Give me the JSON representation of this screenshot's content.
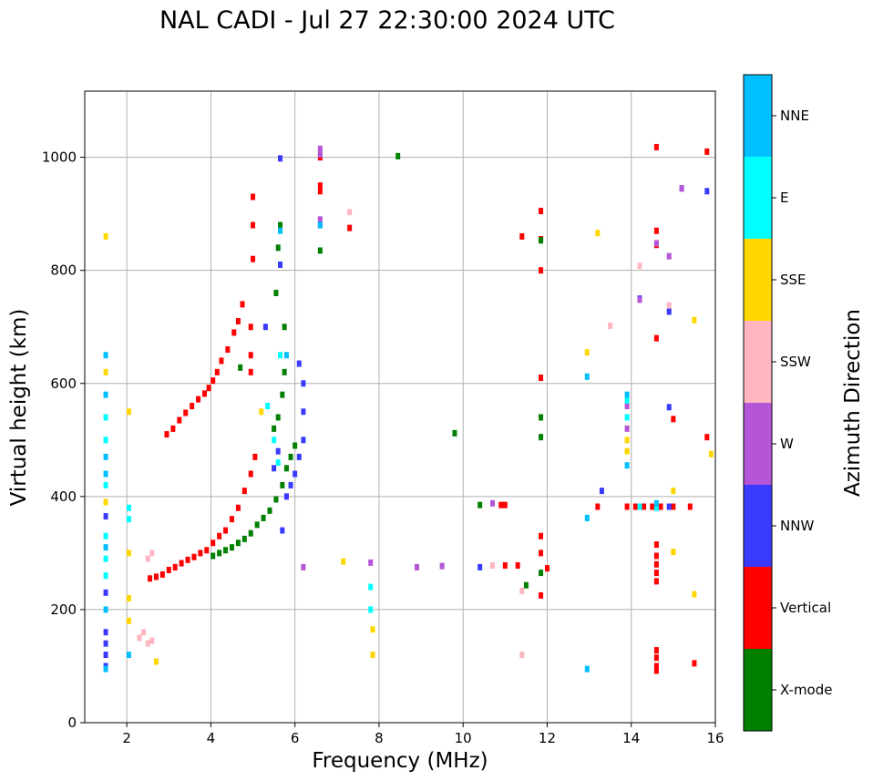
{
  "chart_data": {
    "type": "scatter",
    "title": "NAL CADI - Jul 27 22:30:00 2024 UTC",
    "xlabel": "Frequency (MHz)",
    "ylabel": "Virtual height (km)",
    "xlim": [
      1.0,
      16.0
    ],
    "ylim": [
      0,
      1117
    ],
    "xticks": [
      2,
      4,
      6,
      8,
      10,
      12,
      14,
      16
    ],
    "yticks": [
      0,
      200,
      400,
      600,
      800,
      1000
    ],
    "grid": true,
    "colorbar": {
      "label": "Azimuth Direction",
      "categories": [
        {
          "name": "X-mode",
          "color": "#008000"
        },
        {
          "name": "Vertical",
          "color": "#ff0000"
        },
        {
          "name": "NNW",
          "color": "#3a3aff"
        },
        {
          "name": "W",
          "color": "#b556d6"
        },
        {
          "name": "SSW",
          "color": "#ffb6c1"
        },
        {
          "name": "SSE",
          "color": "#ffd700"
        },
        {
          "name": "E",
          "color": "#00ffff"
        },
        {
          "name": "NNE",
          "color": "#00bfff"
        }
      ]
    },
    "series": [
      {
        "name": "Vertical",
        "points": [
          [
            2.55,
            255
          ],
          [
            2.7,
            258
          ],
          [
            2.85,
            262
          ],
          [
            3.0,
            270
          ],
          [
            3.15,
            275
          ],
          [
            3.3,
            282
          ],
          [
            3.45,
            288
          ],
          [
            3.6,
            293
          ],
          [
            3.75,
            300
          ],
          [
            3.9,
            305
          ],
          [
            4.05,
            318
          ],
          [
            4.2,
            330
          ],
          [
            4.35,
            340
          ],
          [
            4.5,
            360
          ],
          [
            4.65,
            380
          ],
          [
            4.8,
            410
          ],
          [
            4.95,
            440
          ],
          [
            5.05,
            470
          ],
          [
            2.95,
            510
          ],
          [
            3.1,
            520
          ],
          [
            3.25,
            535
          ],
          [
            3.4,
            548
          ],
          [
            3.55,
            560
          ],
          [
            3.7,
            572
          ],
          [
            3.85,
            582
          ],
          [
            3.95,
            592
          ],
          [
            4.05,
            605
          ],
          [
            4.15,
            620
          ],
          [
            4.25,
            640
          ],
          [
            4.4,
            660
          ],
          [
            4.55,
            690
          ],
          [
            4.65,
            710
          ],
          [
            4.75,
            740
          ],
          [
            4.95,
            620
          ],
          [
            4.95,
            650
          ],
          [
            4.95,
            700
          ],
          [
            5.0,
            820
          ],
          [
            5.0,
            880
          ],
          [
            5.0,
            930
          ],
          [
            6.6,
            940
          ],
          [
            6.6,
            950
          ],
          [
            6.6,
            1000
          ],
          [
            7.3,
            875
          ],
          [
            10.9,
            385
          ],
          [
            11.0,
            385
          ],
          [
            11.0,
            278
          ],
          [
            11.3,
            278
          ],
          [
            11.4,
            860
          ],
          [
            11.85,
            225
          ],
          [
            11.85,
            300
          ],
          [
            11.85,
            330
          ],
          [
            11.85,
            610
          ],
          [
            11.85,
            800
          ],
          [
            11.85,
            905
          ],
          [
            11.85,
            855
          ],
          [
            12.0,
            273
          ],
          [
            13.2,
            382
          ],
          [
            13.9,
            382
          ],
          [
            14.1,
            382
          ],
          [
            14.3,
            382
          ],
          [
            14.5,
            382
          ],
          [
            14.7,
            382
          ],
          [
            14.6,
            870
          ],
          [
            14.6,
            845
          ],
          [
            14.6,
            680
          ],
          [
            14.6,
            315
          ],
          [
            14.6,
            295
          ],
          [
            14.6,
            280
          ],
          [
            14.6,
            265
          ],
          [
            14.6,
            250
          ],
          [
            14.6,
            128
          ],
          [
            14.6,
            115
          ],
          [
            14.6,
            100
          ],
          [
            14.6,
            92
          ],
          [
            14.6,
            1018
          ],
          [
            15.0,
            382
          ],
          [
            15.4,
            382
          ],
          [
            15.0,
            537
          ],
          [
            15.8,
            505
          ],
          [
            15.8,
            1010
          ],
          [
            15.5,
            105
          ]
        ]
      },
      {
        "name": "X-mode",
        "points": [
          [
            4.05,
            295
          ],
          [
            4.2,
            300
          ],
          [
            4.35,
            305
          ],
          [
            4.5,
            310
          ],
          [
            4.65,
            318
          ],
          [
            4.8,
            325
          ],
          [
            4.95,
            335
          ],
          [
            5.1,
            350
          ],
          [
            5.25,
            362
          ],
          [
            5.4,
            375
          ],
          [
            5.55,
            395
          ],
          [
            5.7,
            420
          ],
          [
            5.8,
            450
          ],
          [
            5.9,
            470
          ],
          [
            6.0,
            490
          ],
          [
            4.7,
            628
          ],
          [
            5.5,
            520
          ],
          [
            5.6,
            540
          ],
          [
            5.7,
            580
          ],
          [
            5.75,
            620
          ],
          [
            5.55,
            760
          ],
          [
            5.6,
            840
          ],
          [
            5.65,
            880
          ],
          [
            5.75,
            700
          ],
          [
            6.6,
            835
          ],
          [
            8.45,
            1002
          ],
          [
            9.8,
            512
          ],
          [
            10.4,
            385
          ],
          [
            11.5,
            243
          ],
          [
            11.85,
            540
          ],
          [
            11.85,
            505
          ],
          [
            11.85,
            265
          ],
          [
            11.85,
            853
          ]
        ]
      },
      {
        "name": "NNW",
        "points": [
          [
            1.5,
            100
          ],
          [
            1.5,
            120
          ],
          [
            1.5,
            140
          ],
          [
            1.5,
            160
          ],
          [
            1.5,
            230
          ],
          [
            1.5,
            365
          ],
          [
            5.7,
            340
          ],
          [
            5.8,
            400
          ],
          [
            5.9,
            420
          ],
          [
            6.0,
            440
          ],
          [
            6.1,
            470
          ],
          [
            6.2,
            500
          ],
          [
            6.2,
            550
          ],
          [
            6.2,
            600
          ],
          [
            5.6,
            480
          ],
          [
            5.5,
            450
          ],
          [
            5.3,
            700
          ],
          [
            5.65,
            810
          ],
          [
            5.65,
            998
          ],
          [
            6.1,
            635
          ],
          [
            6.6,
            880
          ],
          [
            10.4,
            275
          ],
          [
            13.3,
            410
          ],
          [
            14.2,
            750
          ],
          [
            14.9,
            727
          ],
          [
            14.9,
            558
          ],
          [
            14.9,
            382
          ],
          [
            15.2,
            945
          ],
          [
            15.8,
            940
          ]
        ]
      },
      {
        "name": "W",
        "points": [
          [
            6.2,
            275
          ],
          [
            6.6,
            1005
          ],
          [
            6.6,
            1015
          ],
          [
            6.6,
            890
          ],
          [
            7.8,
            283
          ],
          [
            8.9,
            275
          ],
          [
            9.5,
            277
          ],
          [
            10.7,
            388
          ],
          [
            14.2,
            748
          ],
          [
            14.9,
            825
          ],
          [
            14.6,
            848
          ],
          [
            15.2,
            945
          ],
          [
            13.9,
            560
          ],
          [
            13.9,
            520
          ]
        ]
      },
      {
        "name": "SSW",
        "points": [
          [
            2.3,
            150
          ],
          [
            2.4,
            160
          ],
          [
            2.5,
            140
          ],
          [
            2.6,
            145
          ],
          [
            2.5,
            290
          ],
          [
            2.6,
            300
          ],
          [
            7.3,
            903
          ],
          [
            10.7,
            278
          ],
          [
            11.4,
            120
          ],
          [
            11.4,
            233
          ],
          [
            13.5,
            702
          ],
          [
            14.2,
            808
          ],
          [
            14.9,
            738
          ],
          [
            14.6,
            385
          ]
        ]
      },
      {
        "name": "SSE",
        "points": [
          [
            1.5,
            860
          ],
          [
            1.5,
            620
          ],
          [
            1.5,
            390
          ],
          [
            2.05,
            300
          ],
          [
            2.05,
            220
          ],
          [
            2.05,
            180
          ],
          [
            2.05,
            550
          ],
          [
            2.7,
            108
          ],
          [
            5.2,
            550
          ],
          [
            7.15,
            285
          ],
          [
            7.85,
            120
          ],
          [
            7.85,
            165
          ],
          [
            12.95,
            655
          ],
          [
            13.2,
            866
          ],
          [
            13.9,
            500
          ],
          [
            13.9,
            480
          ],
          [
            15.0,
            410
          ],
          [
            15.0,
            302
          ],
          [
            15.5,
            712
          ],
          [
            15.5,
            227
          ],
          [
            15.9,
            475
          ]
        ]
      },
      {
        "name": "E",
        "points": [
          [
            1.5,
            540
          ],
          [
            1.5,
            500
          ],
          [
            1.5,
            420
          ],
          [
            1.5,
            330
          ],
          [
            1.5,
            290
          ],
          [
            1.5,
            260
          ],
          [
            2.05,
            380
          ],
          [
            2.05,
            360
          ],
          [
            5.35,
            560
          ],
          [
            5.5,
            500
          ],
          [
            5.6,
            460
          ],
          [
            5.65,
            650
          ],
          [
            7.8,
            240
          ],
          [
            7.8,
            200
          ],
          [
            13.9,
            570
          ],
          [
            13.9,
            540
          ],
          [
            14.2,
            382
          ],
          [
            14.6,
            380
          ]
        ]
      },
      {
        "name": "NNE",
        "points": [
          [
            1.5,
            650
          ],
          [
            1.5,
            580
          ],
          [
            1.5,
            470
          ],
          [
            1.5,
            440
          ],
          [
            1.5,
            310
          ],
          [
            1.5,
            200
          ],
          [
            1.5,
            95
          ],
          [
            2.05,
            120
          ],
          [
            5.65,
            870
          ],
          [
            5.8,
            650
          ],
          [
            6.6,
            880
          ],
          [
            12.95,
            612
          ],
          [
            12.95,
            362
          ],
          [
            12.95,
            95
          ],
          [
            13.9,
            580
          ],
          [
            13.9,
            455
          ],
          [
            14.6,
            388
          ]
        ]
      }
    ]
  }
}
